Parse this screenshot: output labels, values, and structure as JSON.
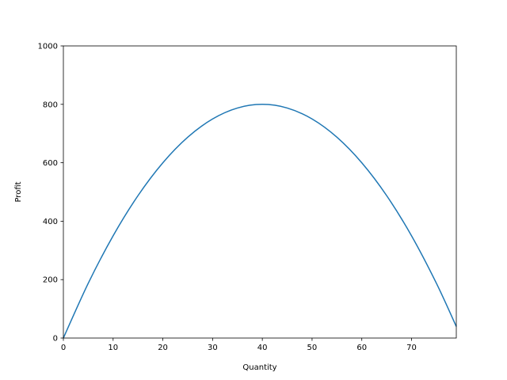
{
  "chart_data": {
    "type": "line",
    "title": "",
    "xlabel": "Quantity",
    "ylabel": "Profit",
    "xlim": [
      0,
      79
    ],
    "ylim": [
      0,
      1000
    ],
    "xticks": [
      0,
      10,
      20,
      30,
      40,
      50,
      60,
      70
    ],
    "yticks": [
      0,
      200,
      400,
      600,
      800,
      1000
    ],
    "grid": false,
    "legend": "none",
    "series": [
      {
        "color": "#1f77b4",
        "x": [
          0,
          5,
          10,
          15,
          20,
          25,
          30,
          35,
          40,
          45,
          50,
          55,
          60,
          65,
          70,
          75,
          79
        ],
        "y": [
          0,
          187.5,
          350,
          487.5,
          600,
          687.5,
          750,
          787.5,
          800,
          787.5,
          750,
          687.5,
          600,
          487.5,
          350,
          187.5,
          39.5
        ]
      }
    ]
  }
}
